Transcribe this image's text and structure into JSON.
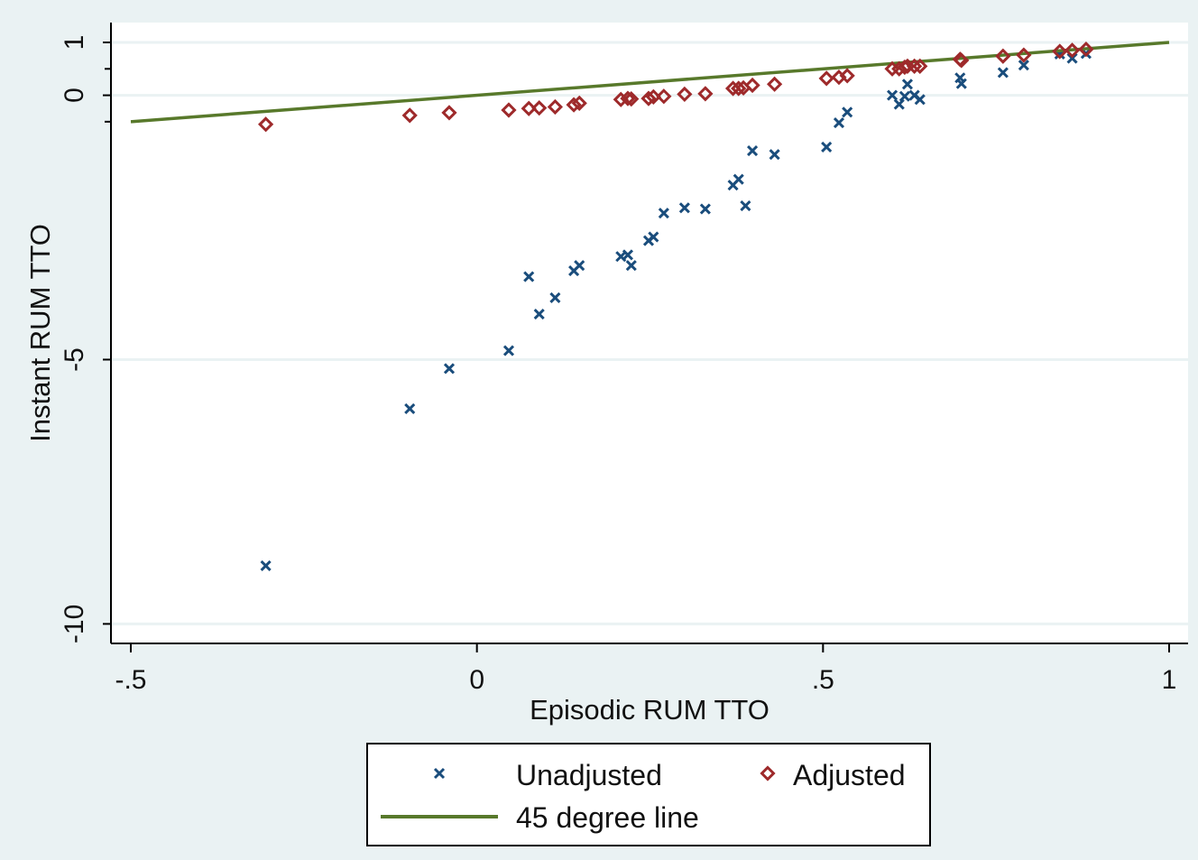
{
  "chart_data": {
    "type": "scatter",
    "xlabel": "Episodic RUM TTO",
    "ylabel": "Instant RUM TTO",
    "xlim": [
      -0.53,
      1.03
    ],
    "ylim": [
      -10.4,
      1.6
    ],
    "x_ticks": [
      {
        "value": -0.5,
        "label": "-.5"
      },
      {
        "value": 0,
        "label": "0"
      },
      {
        "value": 0.5,
        "label": ".5"
      },
      {
        "value": 1,
        "label": "1"
      }
    ],
    "y_ticks": [
      {
        "value": 1,
        "label": "1"
      },
      {
        "value": 0,
        "label": "0"
      },
      {
        "value": -5,
        "label": "-5"
      },
      {
        "value": -10,
        "label": "-10"
      }
    ],
    "y_minor_ticks": [
      0.5,
      -0.5
    ],
    "grid": {
      "horizontal": true,
      "vertical": false
    },
    "series": [
      {
        "name": "Unadjusted",
        "marker": "x",
        "color": "#1a4d7c",
        "x": [
          -0.305,
          -0.097,
          -0.04,
          0.046,
          0.075,
          0.09,
          0.113,
          0.14,
          0.148,
          0.208,
          0.218,
          0.223,
          0.248,
          0.255,
          0.27,
          0.3,
          0.33,
          0.37,
          0.378,
          0.388,
          0.398,
          0.43,
          0.505,
          0.523,
          0.535,
          0.6,
          0.61,
          0.618,
          0.622,
          0.632,
          0.64,
          0.698,
          0.7,
          0.76,
          0.79,
          0.842,
          0.86,
          0.88
        ],
        "y": [
          -8.9,
          -5.93,
          -5.17,
          -4.83,
          -3.43,
          -4.14,
          -3.83,
          -3.32,
          -3.22,
          -3.05,
          -3.02,
          -3.22,
          -2.75,
          -2.68,
          -2.23,
          -2.13,
          -2.15,
          -1.7,
          -1.59,
          -2.09,
          -1.05,
          -1.12,
          -0.98,
          -0.52,
          -0.32,
          0.0,
          -0.17,
          -0.02,
          0.21,
          0.0,
          -0.08,
          0.33,
          0.22,
          0.43,
          0.57,
          0.78,
          0.7,
          0.79
        ]
      },
      {
        "name": "Adjusted",
        "marker": "diamond",
        "color": "#9e2a2b",
        "x": [
          -0.305,
          -0.097,
          -0.04,
          0.046,
          0.075,
          0.09,
          0.113,
          0.14,
          0.148,
          0.208,
          0.218,
          0.223,
          0.248,
          0.255,
          0.27,
          0.3,
          0.33,
          0.37,
          0.378,
          0.385,
          0.398,
          0.43,
          0.505,
          0.523,
          0.535,
          0.6,
          0.61,
          0.618,
          0.622,
          0.632,
          0.64,
          0.698,
          0.7,
          0.76,
          0.79,
          0.842,
          0.86,
          0.88
        ],
        "y": [
          -0.55,
          -0.38,
          -0.33,
          -0.28,
          -0.25,
          -0.24,
          -0.22,
          -0.18,
          -0.15,
          -0.08,
          -0.06,
          -0.07,
          -0.06,
          -0.03,
          -0.02,
          0.02,
          0.03,
          0.13,
          0.13,
          0.14,
          0.19,
          0.21,
          0.32,
          0.34,
          0.37,
          0.5,
          0.5,
          0.53,
          0.55,
          0.55,
          0.55,
          0.68,
          0.66,
          0.74,
          0.76,
          0.83,
          0.85,
          0.87
        ]
      },
      {
        "name": "45 degree line",
        "marker": "line",
        "color": "#58792b",
        "x": [
          -0.5,
          1
        ],
        "y": [
          -0.5,
          1
        ]
      }
    ],
    "legend": {
      "placement": "bottom",
      "entries": [
        "Unadjusted",
        "Adjusted",
        "45 degree line"
      ]
    }
  }
}
